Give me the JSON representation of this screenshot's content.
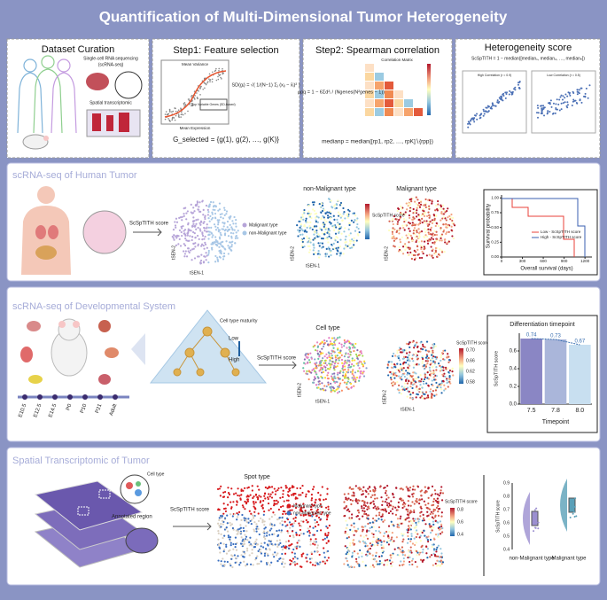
{
  "title": "Quantification of Multi-Dimensional Tumor Heterogeneity",
  "dataset_curation": {
    "title": "Dataset Curation",
    "scrna_label": "Single-cell RNA sequencing",
    "scrna_abbr": "(scRNA-seq)",
    "spatial_label": "Spatial transcriptomic"
  },
  "feature_selection": {
    "title": "Step1: Feature selection",
    "plot_title": "Mean Variance",
    "x_label": "Mean Expression",
    "annotation": "Top Variable Genes (SD-based)",
    "sd_formula": "SD(gᵢ) = √( 1/(N−1) Σⱼ (xᵢⱼ − x̄ᵢ)² )",
    "selected_formula": "G_selected = {g(1), g(2), …, g(K)}"
  },
  "spearman": {
    "title": "Step2: Spearman correlation",
    "matrix_title": "Correlation Matrix",
    "rho_formula": "ρpq = 1 − 6Σd²ᵢ / (Ngenes(N²genes − 1))",
    "median_formula": "medianp = median([rp1, rp2, …, rpK]∖{rpp})"
  },
  "heterogeneity": {
    "title": "Heterogeneity score",
    "formula": "ScSpTITH = 1 − median([median₁, median₂, …, medianₙ])",
    "high_label": "High Correlation (r = 0.9)",
    "low_label": "Low Correlation (r = 0.5)"
  },
  "human_tumor": {
    "title": "scRNA-seq of Human Tumor",
    "arrow_label": "ScSpTITH score",
    "legend": [
      "Malignant type",
      "non-Malignant type"
    ],
    "tsne_x": "tSEN-1",
    "tsne_y": "tSEN-2",
    "plot_titles": [
      "non-Malignant type",
      "Malignant type"
    ],
    "colorbar_label": "ScSpTITH score",
    "survival": {
      "y_label": "Survival probability",
      "x_label": "Overall survival (days)",
      "xlim": [
        0,
        1300
      ],
      "xticks": [
        0,
        300,
        600,
        900,
        1200
      ],
      "ylim": [
        0,
        1.05
      ],
      "yticks": [
        {
          "value": 0,
          "label": "0.00"
        },
        {
          "value": 0.25,
          "label": "0.25"
        },
        {
          "value": 0.5,
          "label": "0.50"
        },
        {
          "value": 0.75,
          "label": "0.75"
        },
        {
          "value": 1,
          "label": "1.00"
        }
      ],
      "legend": [
        "Low - ScSpTITH score",
        "High - ScSpTITH score"
      ],
      "colors": [
        "#e8403a",
        "#3a5fb0"
      ]
    }
  },
  "developmental": {
    "title": "scRNA-seq of Developmental System",
    "timeline": [
      "E10.5",
      "E12.5",
      "E14.5",
      "P0",
      "P10",
      "P21",
      "Adult"
    ],
    "maturity_label": "Cell type maturity",
    "low": "Low",
    "high": "High",
    "arrow_label": "ScSpTITH score",
    "cell_type_title": "Cell type",
    "colorbar_label": "ScSpTITH score",
    "colorbar_ticks": [
      "0.70",
      "0.66",
      "0.62",
      "0.58"
    ],
    "tsne_x": "tSEN-1",
    "tsne_y": "tSEN-2",
    "bar_chart": {
      "title": "Differentiation timepoint",
      "y_label": "ScSpTITH score",
      "x_label": "Timepoint",
      "categories": [
        "7.5",
        "7.8",
        "8.0"
      ],
      "values": [
        0.74,
        0.73,
        0.67
      ],
      "colors": [
        "#8a86c4",
        "#aab6da",
        "#c8dff0"
      ],
      "ylim": [
        0,
        0.8
      ],
      "yticks": [
        {
          "value": 0,
          "label": "0.0"
        },
        0.2,
        0.4,
        0.6
      ]
    }
  },
  "spatial": {
    "title": "Spatial Transcriptomic of Tumor",
    "cell_type_label": "Cell type",
    "region_label": "Annotated region",
    "arrow_label": "ScSpTITH score",
    "spot_type_title": "Spot type",
    "legend": [
      "Malignant type",
      "non-Malignant type"
    ],
    "legend_colors": [
      "#d7191c",
      "#3a6fc0"
    ],
    "colorbar_label": "ScSpTITH score",
    "colorbar_ticks": [
      "0.8",
      "0.6",
      "0.4"
    ],
    "violin": {
      "y_label": "ScSpTITH score",
      "categories": [
        "non-Malignant type",
        "Malignant type"
      ],
      "colors": [
        "#9b8fd0",
        "#5aa0b8"
      ],
      "yticks": [
        "0.9",
        "0.8",
        "0.7",
        "0.6",
        "0.5",
        "0.4"
      ]
    }
  }
}
